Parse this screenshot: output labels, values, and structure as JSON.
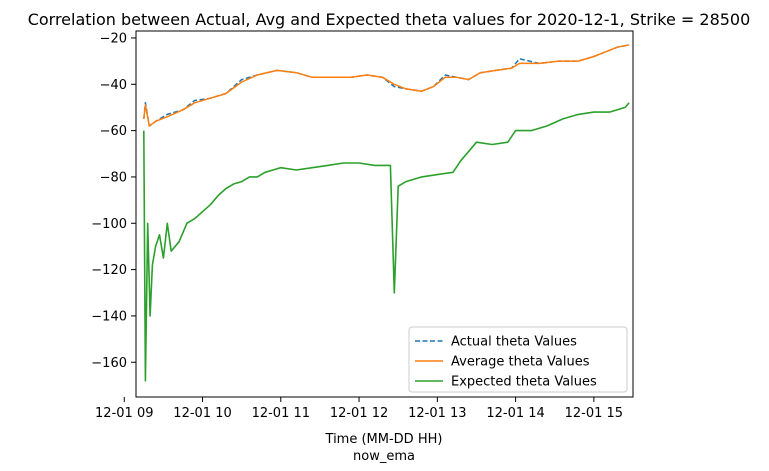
{
  "chart_data": {
    "type": "line",
    "title": "Correlation between Actual, Avg and Expected theta values for 2020-12-1, Strike = 28500",
    "xlabel": "Time (MM-DD HH)",
    "xlabel2": "now_ema",
    "ylabel": "",
    "xlim": [
      9.15,
      15.5
    ],
    "ylim": [
      -175,
      -17
    ],
    "x_ticks": [
      {
        "value": 9,
        "label": "12-01 09"
      },
      {
        "value": 10,
        "label": "12-01 10"
      },
      {
        "value": 11,
        "label": "12-01 11"
      },
      {
        "value": 12,
        "label": "12-01 12"
      },
      {
        "value": 13,
        "label": "12-01 13"
      },
      {
        "value": 14,
        "label": "12-01 14"
      },
      {
        "value": 15,
        "label": "12-01 15"
      }
    ],
    "y_ticks": [
      {
        "value": -20,
        "label": "−20"
      },
      {
        "value": -40,
        "label": "−40"
      },
      {
        "value": -60,
        "label": "−60"
      },
      {
        "value": -80,
        "label": "−80"
      },
      {
        "value": -100,
        "label": "−100"
      },
      {
        "value": -120,
        "label": "−120"
      },
      {
        "value": -140,
        "label": "−140"
      },
      {
        "value": -160,
        "label": "−160"
      }
    ],
    "legend_position": "lower-right",
    "grid": false,
    "series": [
      {
        "name": "Actual theta Values",
        "color": "#1f77b4",
        "style": "dashed",
        "x": [
          9.25,
          9.27,
          9.32,
          9.4,
          9.55,
          9.75,
          9.9,
          10.1,
          10.3,
          10.5,
          10.7,
          10.95,
          11.2,
          11.4,
          11.6,
          11.9,
          12.1,
          12.3,
          12.45,
          12.6,
          12.8,
          12.95,
          13.1,
          13.25,
          13.4,
          13.55,
          13.75,
          13.95,
          14.05,
          14.3,
          14.55,
          14.8,
          15.0,
          15.15,
          15.3,
          15.45
        ],
        "y": [
          -55,
          -48,
          -58,
          -56,
          -53,
          -51,
          -47,
          -46,
          -44,
          -38,
          -36,
          -34,
          -35,
          -37,
          -37,
          -37,
          -36,
          -37,
          -41,
          -42,
          -43,
          -41,
          -36,
          -37,
          -38,
          -35,
          -34,
          -33,
          -29,
          -31,
          -30,
          -30,
          -28,
          -26,
          -24,
          -23
        ]
      },
      {
        "name": "Average theta Values",
        "color": "#ff7f0e",
        "style": "solid",
        "x": [
          9.25,
          9.27,
          9.32,
          9.4,
          9.55,
          9.75,
          9.9,
          10.1,
          10.3,
          10.5,
          10.7,
          10.95,
          11.2,
          11.4,
          11.6,
          11.9,
          12.1,
          12.3,
          12.45,
          12.6,
          12.8,
          12.95,
          13.1,
          13.25,
          13.4,
          13.55,
          13.75,
          13.95,
          14.05,
          14.3,
          14.55,
          14.8,
          15.0,
          15.15,
          15.3,
          15.45
        ],
        "y": [
          -55,
          -49,
          -58,
          -56,
          -54,
          -51,
          -48,
          -46,
          -44,
          -39,
          -36,
          -34,
          -35,
          -37,
          -37,
          -37,
          -36,
          -37,
          -40,
          -42,
          -43,
          -41,
          -37,
          -37,
          -38,
          -35,
          -34,
          -33,
          -31,
          -31,
          -30,
          -30,
          -28,
          -26,
          -24,
          -23
        ]
      },
      {
        "name": "Expected theta Values",
        "color": "#2ca02c",
        "style": "solid",
        "x": [
          9.25,
          9.27,
          9.3,
          9.33,
          9.36,
          9.4,
          9.45,
          9.5,
          9.55,
          9.6,
          9.7,
          9.8,
          9.9,
          10.0,
          10.1,
          10.2,
          10.3,
          10.4,
          10.5,
          10.6,
          10.7,
          10.8,
          10.9,
          11.0,
          11.2,
          11.4,
          11.6,
          11.8,
          12.0,
          12.2,
          12.4,
          12.45,
          12.5,
          12.6,
          12.8,
          13.0,
          13.2,
          13.3,
          13.5,
          13.7,
          13.9,
          14.0,
          14.2,
          14.4,
          14.6,
          14.8,
          15.0,
          15.2,
          15.4,
          15.45
        ],
        "y": [
          -60,
          -168,
          -100,
          -140,
          -118,
          -110,
          -105,
          -115,
          -100,
          -112,
          -108,
          -100,
          -98,
          -95,
          -92,
          -88,
          -85,
          -83,
          -82,
          -80,
          -80,
          -78,
          -77,
          -76,
          -77,
          -76,
          -75,
          -74,
          -74,
          -75,
          -75,
          -130,
          -84,
          -82,
          -80,
          -79,
          -78,
          -73,
          -65,
          -66,
          -65,
          -60,
          -60,
          -58,
          -55,
          -53,
          -52,
          -52,
          -50,
          -48
        ]
      }
    ]
  }
}
